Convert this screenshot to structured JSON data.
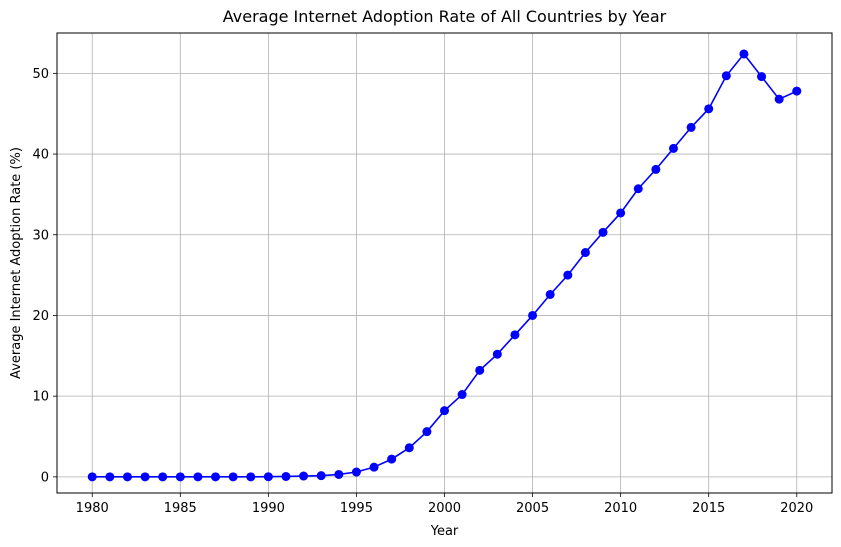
{
  "chart_data": {
    "type": "line",
    "title": "Average Internet Adoption Rate of All Countries by Year",
    "xlabel": "Year",
    "ylabel": "Average Internet Adoption Rate (%)",
    "xlim": [
      1978,
      2022
    ],
    "ylim": [
      -2,
      55
    ],
    "x_ticks": [
      1980,
      1985,
      1990,
      1995,
      2000,
      2005,
      2010,
      2015,
      2020
    ],
    "y_ticks": [
      0,
      10,
      20,
      30,
      40,
      50
    ],
    "grid": true,
    "line_color": "#0000ff",
    "marker": "circle",
    "x": [
      1980,
      1981,
      1982,
      1983,
      1984,
      1985,
      1986,
      1987,
      1988,
      1989,
      1990,
      1991,
      1992,
      1993,
      1994,
      1995,
      1996,
      1997,
      1998,
      1999,
      2000,
      2001,
      2002,
      2003,
      2004,
      2005,
      2006,
      2007,
      2008,
      2009,
      2010,
      2011,
      2012,
      2013,
      2014,
      2015,
      2016,
      2017,
      2018,
      2019,
      2020
    ],
    "values": [
      0.0,
      0.0,
      0.0,
      0.0,
      0.0,
      0.0,
      0.0,
      0.0,
      0.0,
      0.0,
      0.02,
      0.05,
      0.1,
      0.15,
      0.3,
      0.6,
      1.2,
      2.2,
      3.6,
      5.6,
      8.2,
      10.2,
      13.2,
      15.2,
      17.6,
      20.0,
      22.6,
      25.0,
      27.8,
      30.3,
      32.7,
      35.7,
      38.1,
      40.7,
      43.3,
      45.6,
      49.7,
      52.4,
      49.6,
      46.8,
      47.8
    ]
  }
}
